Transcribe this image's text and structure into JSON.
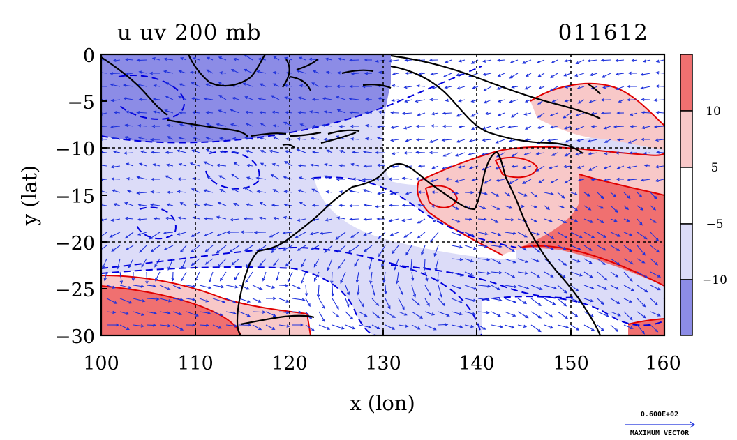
{
  "plot": {
    "title_left": "u uv 200 mb",
    "title_right": "011612",
    "xlabel": "x (lon)",
    "ylabel": "y (lat)",
    "x_ticks": [
      "100",
      "110",
      "120",
      "130",
      "140",
      "150",
      "160"
    ],
    "y_ticks": [
      "0",
      "−5",
      "−10",
      "−15",
      "−20",
      "−25",
      "−30"
    ],
    "x_range": [
      100,
      160
    ],
    "y_range": [
      -30,
      0
    ],
    "grid": true
  },
  "colorbar": {
    "labels": [
      "10",
      "5",
      "−5",
      "−10"
    ],
    "colors": [
      "#f07070",
      "#f8c8c8",
      "#ffffff",
      "#dcdcf8",
      "#8c8ce6"
    ]
  },
  "vector_key": {
    "value": "0.600E+02",
    "label": "MAXIMUM VECTOR"
  },
  "colors": {
    "strong_negative": "#8c8ce6",
    "weak_negative": "#dcdcf8",
    "neutral": "#ffffff",
    "weak_positive": "#f8c8c8",
    "strong_positive": "#f07070",
    "negative_contour": "#0000dd",
    "positive_contour": "#e00000",
    "vector": "#1e32dc",
    "coastline": "#000000"
  }
}
